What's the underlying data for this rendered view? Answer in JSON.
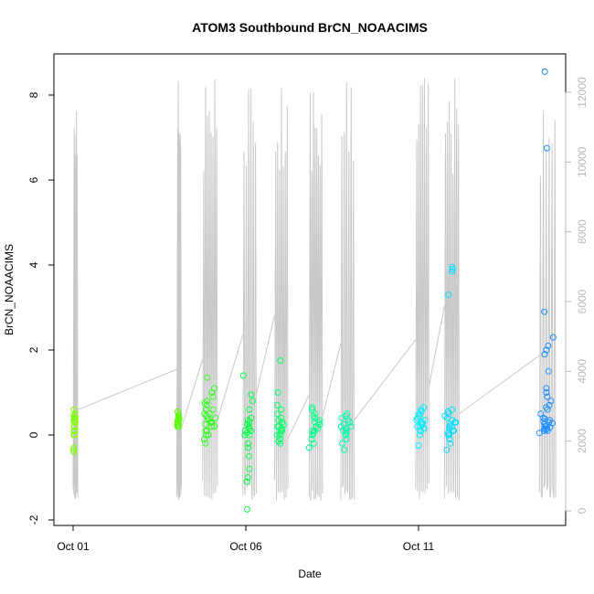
{
  "chart_data": {
    "type": "scatter",
    "title": "ATOM3 Southbound BrCN_NOAACIMS",
    "xlabel": "Date",
    "ylabel": "BrCN_NOAACIMS",
    "xlim": [
      "2017-10-01",
      "2017-10-15"
    ],
    "ylim": [
      -2,
      9
    ],
    "x_ticks": [
      {
        "date": "2017-10-01",
        "label": "Oct 01"
      },
      {
        "date": "2017-10-06",
        "label": "Oct 06"
      },
      {
        "date": "2017-10-11",
        "label": "Oct 11"
      }
    ],
    "y_ticks": [
      -2,
      0,
      2,
      4,
      6,
      8
    ],
    "y2_ticks": [
      0,
      2000,
      4000,
      6000,
      8000,
      10000,
      12000
    ],
    "y2lim": [
      0,
      12500
    ],
    "grid": false,
    "legend": "none",
    "colors": {
      "altitude_line": "#c8c8c8",
      "axis": "#000000",
      "right_axis": "#b8b8b8",
      "flight_colors": [
        "#80ff00",
        "#55ff00",
        "#33ff22",
        "#00ff44",
        "#00ff66",
        "#00ff88",
        "#00ffaa",
        "#00ffcc",
        "#00eeff",
        "#00ddff",
        "#1e90ff"
      ]
    },
    "series": [
      {
        "flight": 1,
        "color": "#80ff00",
        "x_date_range": [
          "2017-10-01 00:00",
          "2017-10-01 02:00"
        ],
        "y_values": [
          -0.4,
          -0.3,
          0.0,
          0.1,
          0.2,
          0.3,
          0.4,
          0.45,
          0.5,
          0.6,
          0.3,
          0.2,
          0.1,
          0.0,
          -0.35,
          0.4,
          0.5,
          0.35
        ]
      },
      {
        "flight": 2,
        "color": "#55ff00",
        "x_date_range": [
          "2017-10-04 00:00",
          "2017-10-04 02:00"
        ],
        "y_values": [
          0.2,
          0.25,
          0.3,
          0.35,
          0.4,
          0.45,
          0.5,
          0.55,
          0.3,
          0.2,
          0.25,
          0.35,
          0.4
        ]
      },
      {
        "flight": 3,
        "color": "#33ff22",
        "x_date_range": [
          "2017-10-04 18:00",
          "2017-10-05 03:00"
        ],
        "y_values": [
          -0.2,
          -0.1,
          0.0,
          0.1,
          0.2,
          0.3,
          0.4,
          0.5,
          0.6,
          0.7,
          0.8,
          0.9,
          1.0,
          1.1,
          1.35,
          0.25,
          0.35,
          0.45,
          0.3,
          0.2,
          0.6,
          0.75,
          0.1,
          0.0,
          0.5,
          0.4,
          0.3,
          0.2
        ]
      },
      {
        "flight": 4,
        "color": "#00ff44",
        "x_date_range": [
          "2017-10-05 22:00",
          "2017-10-06 06:00"
        ],
        "y_values": [
          -1.75,
          -1.1,
          -1.0,
          -0.8,
          -0.5,
          -0.2,
          0.0,
          0.1,
          0.2,
          0.3,
          0.4,
          0.6,
          0.8,
          0.95,
          1.4,
          0.15,
          0.05,
          0.25,
          -0.3,
          0.35,
          0.1,
          0.0
        ]
      },
      {
        "flight": 5,
        "color": "#00ff66",
        "x_date_range": [
          "2017-10-06 20:00",
          "2017-10-07 04:00"
        ],
        "y_values": [
          -0.2,
          -0.1,
          0.0,
          0.1,
          0.2,
          0.3,
          0.4,
          0.5,
          0.7,
          1.0,
          1.75,
          0.15,
          0.05,
          0.25,
          0.35,
          -0.15,
          0.0,
          0.2,
          0.6,
          0.1
        ]
      },
      {
        "flight": 6,
        "color": "#00ff88",
        "x_date_range": [
          "2017-10-07 20:00",
          "2017-10-08 04:00"
        ],
        "y_values": [
          -0.3,
          -0.2,
          -0.1,
          0.0,
          0.1,
          0.2,
          0.3,
          0.4,
          0.5,
          0.6,
          0.65,
          0.15,
          0.25,
          0.35,
          0.05,
          0.45,
          0.2,
          0.1,
          0.3
        ]
      },
      {
        "flight": 7,
        "color": "#00ffaa",
        "x_date_range": [
          "2017-10-08 18:00",
          "2017-10-09 02:00"
        ],
        "y_values": [
          -0.35,
          -0.2,
          -0.1,
          0.0,
          0.1,
          0.2,
          0.3,
          0.4,
          0.45,
          0.5,
          0.25,
          0.15,
          0.05,
          0.35,
          0.2,
          0.1
        ]
      },
      {
        "flight": 8,
        "color": "#00eeff",
        "x_date_range": [
          "2017-10-10 22:00",
          "2017-10-11 06:00"
        ],
        "y_values": [
          -0.25,
          0.0,
          0.1,
          0.15,
          0.2,
          0.25,
          0.3,
          0.35,
          0.4,
          0.45,
          0.5,
          0.55,
          0.6,
          0.65,
          0.2,
          0.3,
          0.1,
          0.25,
          0.35,
          0.15
        ]
      },
      {
        "flight": 9,
        "color": "#00ddff",
        "x_date_range": [
          "2017-10-11 18:00",
          "2017-10-12 03:00"
        ],
        "y_values": [
          -0.35,
          -0.2,
          -0.1,
          0.0,
          0.1,
          0.2,
          0.3,
          0.4,
          0.5,
          0.6,
          3.3,
          3.85,
          3.9,
          3.95,
          0.15,
          0.25,
          0.05,
          0.35,
          0.2,
          0.1,
          0.3,
          0.45,
          0.55,
          0.0
        ]
      },
      {
        "flight": 10,
        "color": "#1e90ff",
        "x_date_range": [
          "2017-10-14 12:00",
          "2017-10-14 22:00"
        ],
        "y_values": [
          0.05,
          0.1,
          0.15,
          0.2,
          0.25,
          0.3,
          0.35,
          0.4,
          0.5,
          0.6,
          0.65,
          0.7,
          0.8,
          0.9,
          1.0,
          1.1,
          1.5,
          1.9,
          2.0,
          2.1,
          2.3,
          2.9,
          6.75,
          8.55,
          0.12,
          0.18,
          0.22,
          0.28,
          0.32,
          0.38,
          0.15,
          0.1
        ]
      }
    ],
    "right_axis_series": {
      "name": "",
      "description": "grey altitude trace (right axis)",
      "note_units": "right axis values"
    }
  }
}
